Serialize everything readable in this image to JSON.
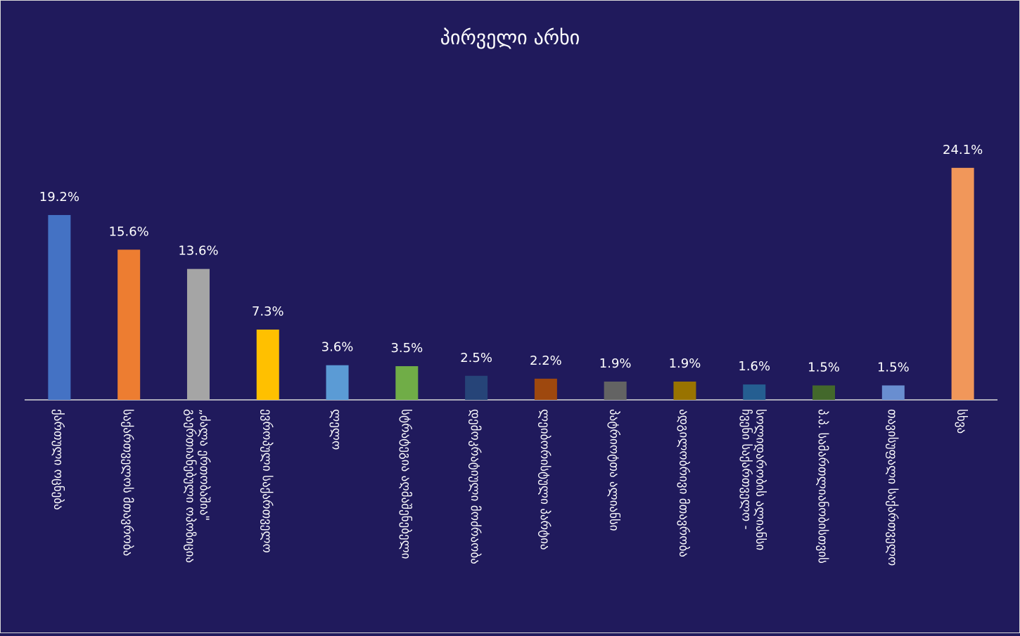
{
  "chart_data": {
    "type": "bar",
    "title": "პირველი არხი",
    "categories": [
      "ქართული ოცნება",
      "საქართველოს მთავრობა",
      "გაერთიანებული ოპოზიცია\n„ძალა ერთობაშია\"",
      "ევროპული საქართველო",
      "ლელო",
      "სტრატეგია აღმაშენებელი",
      "დემოკრატიული მოძრაობა",
      "ლეიბორისტული პარტია",
      "პატრიოტთა ალიანსი",
      "ადგილობრივი მთავრობა",
      "ჩვენი საქართველო -\nსოლიდარობის ალიანსი",
      "პ.პ. სამართლიანობისთვის",
      "თავისუფალი საქართველო",
      "სხვა"
    ],
    "values": [
      19.2,
      15.6,
      13.6,
      7.3,
      3.6,
      3.5,
      2.5,
      2.2,
      1.9,
      1.9,
      1.6,
      1.5,
      1.5,
      24.1
    ],
    "value_labels": [
      "19.2%",
      "15.6%",
      "13.6%",
      "7.3%",
      "3.6%",
      "3.5%",
      "2.5%",
      "2.2%",
      "1.9%",
      "1.9%",
      "1.6%",
      "1.5%",
      "1.5%",
      "24.1%"
    ],
    "colors": [
      "#4472c4",
      "#ed7d31",
      "#a5a5a5",
      "#ffc000",
      "#5b9bd5",
      "#70ad47",
      "#264478",
      "#9e480e",
      "#636363",
      "#997300",
      "#255e91",
      "#43682b",
      "#698ed0",
      "#f1975a"
    ],
    "ylim": [
      0,
      25
    ]
  }
}
